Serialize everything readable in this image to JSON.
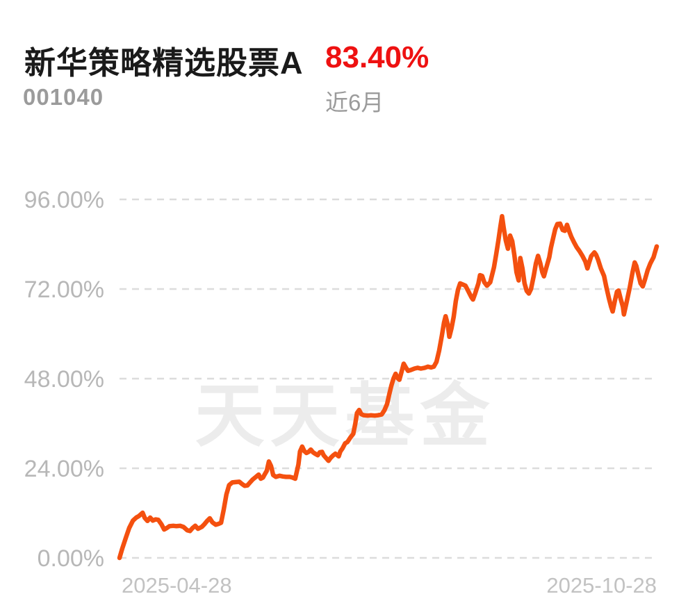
{
  "header": {
    "fund_name": "新华策略精选股票A",
    "fund_code": "001040",
    "return_value": "83.40%",
    "period_label": "近6月"
  },
  "watermark": {
    "text": "天天基金"
  },
  "colors": {
    "background": "#ffffff",
    "line": "#f4500f",
    "return_text": "#ee1111",
    "title_text": "#1a1a1a",
    "subtext": "#9b9b9b",
    "axis_tick_text": "#b7b7b7",
    "date_text": "#c2c2c2",
    "gridline": "#dcdcdc",
    "watermark": "#ececec"
  },
  "chart_data": {
    "type": "line",
    "title": "新华策略精选股票A 近6月 83.40%",
    "y_axis": {
      "tick_labels": [
        "96.00%",
        "72.00%",
        "48.00%",
        "24.00%",
        "0.00%"
      ],
      "tick_values": [
        96,
        72,
        48,
        24,
        0
      ],
      "ylim": [
        0,
        96
      ],
      "unit": "%",
      "gridlines": "dashed"
    },
    "x_axis": {
      "tick_labels": [
        "2025-04-28",
        "2025-10-28"
      ],
      "range": [
        "2025-04-28",
        "2025-10-28"
      ]
    },
    "legend": "none",
    "series": [
      {
        "name": "新华策略精选股票A",
        "final_value_pct": 83.4,
        "points_format": [
          "x_fraction_of_range",
          "value_pct"
        ],
        "points": [
          [
            0.0,
            0.0
          ],
          [
            0.005,
            2.5
          ],
          [
            0.012,
            5.5
          ],
          [
            0.018,
            8.0
          ],
          [
            0.025,
            10.0
          ],
          [
            0.031,
            10.8
          ],
          [
            0.036,
            11.2
          ],
          [
            0.043,
            12.1
          ],
          [
            0.047,
            10.7
          ],
          [
            0.052,
            9.9
          ],
          [
            0.057,
            10.8
          ],
          [
            0.062,
            10.0
          ],
          [
            0.067,
            10.3
          ],
          [
            0.072,
            10.2
          ],
          [
            0.078,
            9.0
          ],
          [
            0.083,
            7.6
          ],
          [
            0.088,
            8.0
          ],
          [
            0.093,
            8.5
          ],
          [
            0.1,
            8.6
          ],
          [
            0.106,
            8.5
          ],
          [
            0.113,
            8.6
          ],
          [
            0.119,
            8.3
          ],
          [
            0.126,
            7.4
          ],
          [
            0.131,
            7.2
          ],
          [
            0.136,
            8.0
          ],
          [
            0.141,
            8.6
          ],
          [
            0.146,
            7.8
          ],
          [
            0.153,
            8.3
          ],
          [
            0.158,
            9.0
          ],
          [
            0.163,
            9.9
          ],
          [
            0.168,
            10.6
          ],
          [
            0.173,
            9.5
          ],
          [
            0.179,
            8.9
          ],
          [
            0.184,
            9.1
          ],
          [
            0.189,
            9.4
          ],
          [
            0.194,
            13.0
          ],
          [
            0.199,
            17.0
          ],
          [
            0.204,
            19.5
          ],
          [
            0.21,
            20.2
          ],
          [
            0.216,
            20.3
          ],
          [
            0.223,
            20.4
          ],
          [
            0.228,
            19.8
          ],
          [
            0.233,
            19.3
          ],
          [
            0.238,
            19.4
          ],
          [
            0.243,
            20.2
          ],
          [
            0.248,
            21.0
          ],
          [
            0.254,
            21.7
          ],
          [
            0.259,
            22.3
          ],
          [
            0.263,
            21.2
          ],
          [
            0.267,
            21.5
          ],
          [
            0.27,
            22.3
          ],
          [
            0.274,
            23.3
          ],
          [
            0.278,
            25.8
          ],
          [
            0.282,
            24.6
          ],
          [
            0.286,
            22.2
          ],
          [
            0.291,
            21.7
          ],
          [
            0.298,
            22.0
          ],
          [
            0.304,
            21.8
          ],
          [
            0.31,
            21.7
          ],
          [
            0.317,
            21.7
          ],
          [
            0.322,
            21.5
          ],
          [
            0.327,
            21.2
          ],
          [
            0.333,
            25.0
          ],
          [
            0.336,
            28.5
          ],
          [
            0.34,
            29.8
          ],
          [
            0.344,
            28.6
          ],
          [
            0.348,
            28.1
          ],
          [
            0.352,
            28.4
          ],
          [
            0.356,
            29.0
          ],
          [
            0.36,
            28.3
          ],
          [
            0.364,
            27.9
          ],
          [
            0.369,
            27.5
          ],
          [
            0.373,
            28.3
          ],
          [
            0.377,
            28.4
          ],
          [
            0.38,
            27.5
          ],
          [
            0.386,
            26.5
          ],
          [
            0.389,
            26.0
          ],
          [
            0.393,
            26.8
          ],
          [
            0.398,
            27.5
          ],
          [
            0.402,
            27.9
          ],
          [
            0.408,
            27.2
          ],
          [
            0.411,
            28.5
          ],
          [
            0.415,
            29.3
          ],
          [
            0.42,
            30.7
          ],
          [
            0.424,
            31.0
          ],
          [
            0.43,
            32.3
          ],
          [
            0.435,
            33.2
          ],
          [
            0.439,
            36.0
          ],
          [
            0.442,
            38.8
          ],
          [
            0.446,
            39.6
          ],
          [
            0.45,
            38.5
          ],
          [
            0.455,
            38.2
          ],
          [
            0.462,
            38.1
          ],
          [
            0.468,
            38.2
          ],
          [
            0.475,
            38.1
          ],
          [
            0.481,
            38.2
          ],
          [
            0.488,
            38.4
          ],
          [
            0.493,
            39.5
          ],
          [
            0.498,
            41.2
          ],
          [
            0.502,
            43.7
          ],
          [
            0.506,
            46.1
          ],
          [
            0.51,
            48.0
          ],
          [
            0.514,
            49.3
          ],
          [
            0.518,
            48.1
          ],
          [
            0.521,
            47.7
          ],
          [
            0.525,
            49.8
          ],
          [
            0.529,
            52.0
          ],
          [
            0.533,
            51.0
          ],
          [
            0.537,
            50.1
          ],
          [
            0.542,
            50.3
          ],
          [
            0.549,
            50.7
          ],
          [
            0.555,
            50.9
          ],
          [
            0.561,
            50.7
          ],
          [
            0.568,
            50.9
          ],
          [
            0.574,
            51.2
          ],
          [
            0.58,
            51.0
          ],
          [
            0.585,
            51.2
          ],
          [
            0.59,
            52.5
          ],
          [
            0.595,
            55.5
          ],
          [
            0.6,
            59.5
          ],
          [
            0.604,
            63.0
          ],
          [
            0.607,
            64.7
          ],
          [
            0.611,
            62.5
          ],
          [
            0.614,
            59.2
          ],
          [
            0.618,
            61.5
          ],
          [
            0.622,
            64.5
          ],
          [
            0.626,
            68.8
          ],
          [
            0.63,
            71.8
          ],
          [
            0.634,
            73.5
          ],
          [
            0.639,
            73.2
          ],
          [
            0.644,
            72.9
          ],
          [
            0.649,
            71.5
          ],
          [
            0.655,
            69.8
          ],
          [
            0.658,
            69.2
          ],
          [
            0.662,
            70.8
          ],
          [
            0.668,
            73.5
          ],
          [
            0.671,
            75.7
          ],
          [
            0.675,
            75.5
          ],
          [
            0.679,
            73.8
          ],
          [
            0.684,
            72.9
          ],
          [
            0.69,
            73.8
          ],
          [
            0.693,
            75.5
          ],
          [
            0.697,
            77.8
          ],
          [
            0.701,
            81.2
          ],
          [
            0.705,
            84.8
          ],
          [
            0.709,
            88.8
          ],
          [
            0.712,
            91.5
          ],
          [
            0.715,
            88.5
          ],
          [
            0.719,
            85.0
          ],
          [
            0.723,
            82.8
          ],
          [
            0.727,
            86.3
          ],
          [
            0.731,
            84.8
          ],
          [
            0.735,
            81.0
          ],
          [
            0.739,
            76.5
          ],
          [
            0.743,
            74.3
          ],
          [
            0.746,
            80.3
          ],
          [
            0.75,
            77.5
          ],
          [
            0.754,
            73.5
          ],
          [
            0.758,
            71.5
          ],
          [
            0.762,
            70.8
          ],
          [
            0.766,
            72.0
          ],
          [
            0.771,
            75.5
          ],
          [
            0.775,
            78.8
          ],
          [
            0.779,
            80.9
          ],
          [
            0.783,
            79.0
          ],
          [
            0.787,
            76.5
          ],
          [
            0.79,
            75.4
          ],
          [
            0.794,
            77.5
          ],
          [
            0.8,
            80.5
          ],
          [
            0.803,
            83.0
          ],
          [
            0.807,
            85.5
          ],
          [
            0.811,
            88.0
          ],
          [
            0.815,
            89.4
          ],
          [
            0.82,
            89.5
          ],
          [
            0.825,
            87.8
          ],
          [
            0.829,
            87.6
          ],
          [
            0.833,
            89.2
          ],
          [
            0.837,
            87.5
          ],
          [
            0.841,
            86.0
          ],
          [
            0.846,
            84.5
          ],
          [
            0.851,
            83.2
          ],
          [
            0.856,
            82.2
          ],
          [
            0.862,
            80.8
          ],
          [
            0.867,
            79.4
          ],
          [
            0.871,
            77.5
          ],
          [
            0.874,
            79.0
          ],
          [
            0.878,
            80.8
          ],
          [
            0.884,
            81.8
          ],
          [
            0.887,
            81.2
          ],
          [
            0.891,
            79.8
          ],
          [
            0.896,
            77.5
          ],
          [
            0.902,
            75.5
          ],
          [
            0.906,
            72.7
          ],
          [
            0.911,
            69.5
          ],
          [
            0.915,
            67.3
          ],
          [
            0.918,
            66.0
          ],
          [
            0.922,
            68.8
          ],
          [
            0.926,
            71.3
          ],
          [
            0.929,
            71.6
          ],
          [
            0.933,
            69.3
          ],
          [
            0.937,
            67.3
          ],
          [
            0.939,
            65.2
          ],
          [
            0.944,
            68.5
          ],
          [
            0.95,
            72.5
          ],
          [
            0.955,
            76.5
          ],
          [
            0.959,
            79.1
          ],
          [
            0.962,
            78.2
          ],
          [
            0.966,
            75.8
          ],
          [
            0.97,
            73.5
          ],
          [
            0.974,
            72.7
          ],
          [
            0.978,
            74.5
          ],
          [
            0.983,
            77.0
          ],
          [
            0.988,
            78.8
          ],
          [
            0.994,
            80.5
          ],
          [
            0.997,
            82.0
          ],
          [
            1.0,
            83.4
          ]
        ]
      }
    ]
  }
}
